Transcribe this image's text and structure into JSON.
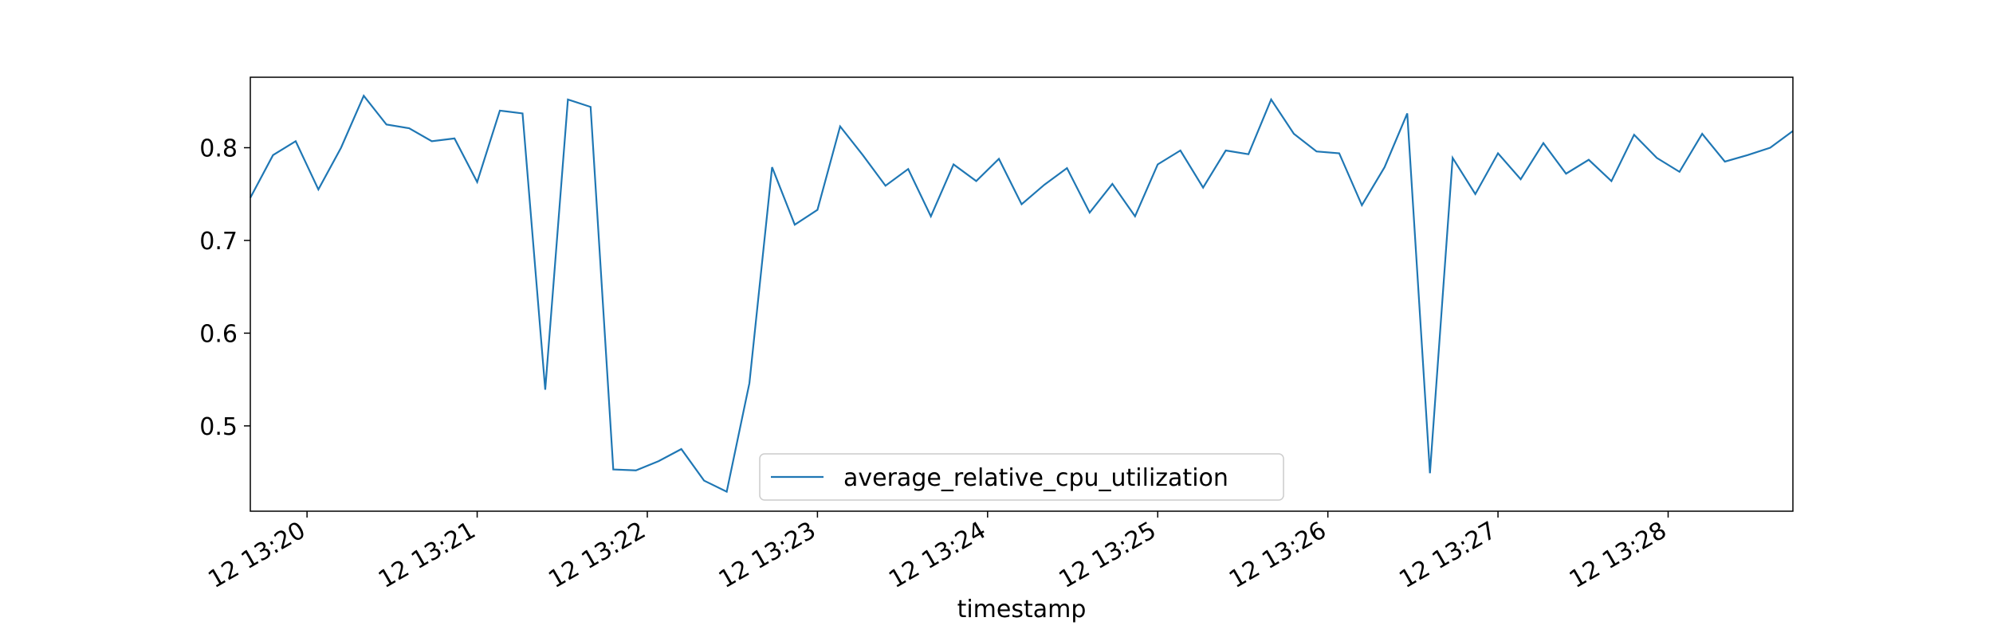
{
  "chart_data": {
    "type": "line",
    "xlabel": "timestamp",
    "x": [
      "12 13:19:40",
      "12 13:19:48",
      "12 13:19:56",
      "12 13:20:04",
      "12 13:20:12",
      "12 13:20:20",
      "12 13:20:28",
      "12 13:20:36",
      "12 13:20:44",
      "12 13:20:52",
      "12 13:21:00",
      "12 13:21:08",
      "12 13:21:16",
      "12 13:21:24",
      "12 13:21:32",
      "12 13:21:40",
      "12 13:21:48",
      "12 13:21:56",
      "12 13:22:04",
      "12 13:22:12",
      "12 13:22:20",
      "12 13:22:28",
      "12 13:22:36",
      "12 13:22:44",
      "12 13:22:52",
      "12 13:23:00",
      "12 13:23:08",
      "12 13:23:16",
      "12 13:23:24",
      "12 13:23:32",
      "12 13:23:40",
      "12 13:23:48",
      "12 13:23:56",
      "12 13:24:04",
      "12 13:24:12",
      "12 13:24:20",
      "12 13:24:28",
      "12 13:24:36",
      "12 13:24:44",
      "12 13:24:52",
      "12 13:25:00",
      "12 13:25:08",
      "12 13:25:16",
      "12 13:25:24",
      "12 13:25:32",
      "12 13:25:40",
      "12 13:25:48",
      "12 13:25:56",
      "12 13:26:04",
      "12 13:26:12",
      "12 13:26:20",
      "12 13:26:28",
      "12 13:26:36",
      "12 13:26:44",
      "12 13:26:52",
      "12 13:27:00",
      "12 13:27:08",
      "12 13:27:16",
      "12 13:27:24",
      "12 13:27:32",
      "12 13:27:40",
      "12 13:27:48",
      "12 13:27:56",
      "12 13:28:04",
      "12 13:28:12",
      "12 13:28:20",
      "12 13:28:28",
      "12 13:28:36",
      "12 13:28:44"
    ],
    "series": [
      {
        "name": "average_relative_cpu_utilization",
        "color": "#1f77b4",
        "values": [
          0.746,
          0.792,
          0.807,
          0.755,
          0.8,
          0.856,
          0.825,
          0.821,
          0.807,
          0.81,
          0.763,
          0.84,
          0.837,
          0.539,
          0.852,
          0.844,
          0.453,
          0.452,
          0.462,
          0.475,
          0.441,
          0.429,
          0.546,
          0.779,
          0.717,
          0.733,
          0.823,
          0.792,
          0.759,
          0.777,
          0.726,
          0.782,
          0.764,
          0.788,
          0.739,
          0.76,
          0.778,
          0.73,
          0.761,
          0.726,
          0.782,
          0.797,
          0.757,
          0.797,
          0.793,
          0.852,
          0.815,
          0.796,
          0.794,
          0.738,
          0.779,
          0.837,
          0.449,
          0.789,
          0.75,
          0.794,
          0.766,
          0.805,
          0.772,
          0.787,
          0.764,
          0.814,
          0.789,
          0.774,
          0.815,
          0.785,
          0.792,
          0.8,
          0.818
        ]
      }
    ],
    "xlim": [
      "12 13:19:40",
      "12 13:28:44"
    ],
    "xticks": [
      {
        "value": "12 13:20:00",
        "label": "12 13:20"
      },
      {
        "value": "12 13:21:00",
        "label": "12 13:21"
      },
      {
        "value": "12 13:22:00",
        "label": "12 13:22"
      },
      {
        "value": "12 13:23:00",
        "label": "12 13:23"
      },
      {
        "value": "12 13:24:00",
        "label": "12 13:24"
      },
      {
        "value": "12 13:25:00",
        "label": "12 13:25"
      },
      {
        "value": "12 13:26:00",
        "label": "12 13:26"
      },
      {
        "value": "12 13:27:00",
        "label": "12 13:27"
      },
      {
        "value": "12 13:28:00",
        "label": "12 13:28"
      }
    ],
    "ylim": [
      0.408,
      0.876
    ],
    "yticks": [
      0.5,
      0.6,
      0.7,
      0.8
    ],
    "legend": "lower center"
  }
}
